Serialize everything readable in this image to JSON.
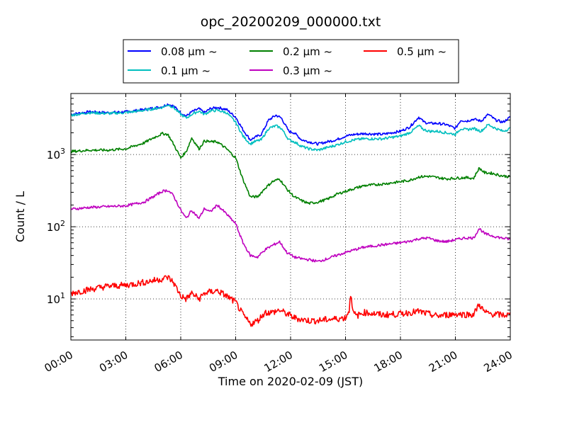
{
  "chart_data": {
    "type": "line",
    "title": "opc_20200209_000000.txt",
    "xlabel": "Time on 2020-02-09 (JST)",
    "ylabel": "Count / L",
    "y_scale": "log",
    "xlim": [
      0,
      24
    ],
    "ylim": [
      2.7,
      7000
    ],
    "grid": true,
    "legend_position": "top-center",
    "x_ticks": [
      {
        "value": 0,
        "label": "00:00"
      },
      {
        "value": 3,
        "label": "03:00"
      },
      {
        "value": 6,
        "label": "06:00"
      },
      {
        "value": 9,
        "label": "09:00"
      },
      {
        "value": 12,
        "label": "12:00"
      },
      {
        "value": 15,
        "label": "15:00"
      },
      {
        "value": 18,
        "label": "18:00"
      },
      {
        "value": 21,
        "label": "21:00"
      },
      {
        "value": 24,
        "label": "24:00"
      }
    ],
    "y_ticks": [
      {
        "value": 10,
        "base": "10",
        "exp": "1"
      },
      {
        "value": 100,
        "base": "10",
        "exp": "2"
      },
      {
        "value": 1000,
        "base": "10",
        "exp": "3"
      }
    ],
    "series": [
      {
        "name": "0.08 μm ~",
        "color": "#0000ff",
        "x": [
          0,
          1,
          2,
          3,
          4,
          5,
          5.3,
          5.6,
          6.0,
          6.3,
          6.6,
          7.0,
          7.3,
          7.6,
          8.0,
          8.5,
          9.0,
          9.4,
          9.8,
          10.0,
          10.4,
          10.8,
          11.2,
          11.5,
          11.9,
          12.2,
          12.6,
          13.0,
          13.5,
          14.0,
          14.5,
          15.0,
          15.5,
          16.0,
          17.0,
          18.0,
          18.5,
          19.0,
          19.3,
          19.6,
          20.0,
          20.5,
          21.0,
          21.3,
          21.6,
          22.0,
          22.4,
          22.8,
          23.2,
          23.6,
          24.0
        ],
        "y": [
          3600,
          3900,
          3800,
          3900,
          4200,
          4600,
          5000,
          4700,
          3800,
          3400,
          3900,
          4300,
          3800,
          4300,
          4500,
          4200,
          3300,
          2200,
          1600,
          1700,
          1900,
          3000,
          3500,
          3200,
          2100,
          2000,
          1600,
          1500,
          1400,
          1500,
          1600,
          1800,
          1900,
          1950,
          1900,
          2100,
          2400,
          3300,
          2800,
          2700,
          2700,
          2600,
          2300,
          3000,
          2900,
          3100,
          2900,
          3600,
          3000,
          2800,
          3300
        ]
      },
      {
        "name": "0.1 μm ~",
        "color": "#00bfbf",
        "x": [
          0,
          1,
          2,
          3,
          4,
          5,
          5.3,
          5.6,
          6.0,
          6.3,
          6.6,
          7.0,
          7.3,
          7.6,
          8.0,
          8.5,
          9.0,
          9.4,
          9.8,
          10.0,
          10.4,
          10.8,
          11.2,
          11.5,
          11.9,
          12.2,
          12.6,
          13.0,
          13.5,
          14.0,
          14.5,
          15.0,
          15.5,
          16.0,
          17.0,
          18.0,
          18.5,
          19.0,
          19.3,
          19.6,
          20.0,
          20.5,
          21.0,
          21.3,
          21.6,
          22.0,
          22.4,
          22.8,
          23.2,
          23.6,
          24.0
        ],
        "y": [
          3500,
          3800,
          3700,
          3800,
          4100,
          4500,
          4900,
          4500,
          3600,
          3200,
          3600,
          4000,
          3600,
          4000,
          4100,
          3800,
          2800,
          1800,
          1400,
          1500,
          1600,
          2300,
          2500,
          2300,
          1600,
          1500,
          1300,
          1200,
          1150,
          1250,
          1350,
          1500,
          1600,
          1650,
          1650,
          1800,
          2000,
          2500,
          2200,
          2100,
          2100,
          2000,
          1900,
          2300,
          2200,
          2300,
          2100,
          2600,
          2300,
          2100,
          2300
        ]
      },
      {
        "name": "0.2 μm ~",
        "color": "#008000",
        "x": [
          0,
          1,
          2,
          3,
          4,
          4.5,
          5.0,
          5.3,
          5.6,
          6.0,
          6.3,
          6.6,
          7.0,
          7.3,
          7.6,
          8.0,
          8.5,
          9.0,
          9.4,
          9.8,
          10.2,
          10.6,
          11.0,
          11.4,
          11.8,
          12.2,
          12.6,
          13.0,
          13.5,
          14.0,
          14.5,
          15.0,
          15.5,
          16.0,
          17.0,
          18.0,
          18.5,
          19.0,
          19.5,
          20.0,
          20.5,
          21.0,
          21.5,
          22.0,
          22.3,
          22.6,
          23.0,
          23.5,
          24.0
        ],
        "y": [
          1100,
          1150,
          1150,
          1200,
          1450,
          1700,
          1950,
          1900,
          1400,
          900,
          1100,
          1700,
          1200,
          1550,
          1500,
          1500,
          1200,
          900,
          450,
          260,
          260,
          340,
          420,
          460,
          330,
          260,
          230,
          210,
          220,
          240,
          280,
          310,
          340,
          370,
          390,
          420,
          440,
          490,
          500,
          480,
          460,
          470,
          480,
          470,
          650,
          560,
          550,
          510,
          490
        ]
      },
      {
        "name": "0.3 μm ~",
        "color": "#bf00bf",
        "x": [
          0,
          1,
          2,
          3,
          4,
          4.5,
          5.0,
          5.3,
          5.6,
          6.0,
          6.3,
          6.6,
          7.0,
          7.3,
          7.6,
          8.0,
          8.5,
          9.0,
          9.4,
          9.8,
          10.2,
          10.6,
          11.0,
          11.4,
          11.8,
          12.2,
          12.6,
          13.0,
          13.5,
          14.0,
          14.5,
          15.0,
          15.5,
          16.0,
          17.0,
          18.0,
          18.5,
          19.0,
          19.5,
          20.0,
          20.5,
          21.0,
          21.5,
          22.0,
          22.3,
          22.6,
          23.0,
          23.5,
          24.0
        ],
        "y": [
          175,
          185,
          190,
          195,
          220,
          260,
          310,
          320,
          270,
          170,
          130,
          170,
          130,
          180,
          160,
          200,
          150,
          110,
          60,
          40,
          38,
          48,
          55,
          62,
          44,
          38,
          36,
          35,
          33,
          36,
          40,
          44,
          48,
          52,
          56,
          60,
          63,
          68,
          70,
          64,
          62,
          66,
          70,
          70,
          95,
          80,
          75,
          70,
          67
        ]
      },
      {
        "name": "0.5 μm ~",
        "color": "#ff0000",
        "x": [
          0,
          1,
          2,
          3,
          4,
          4.5,
          5.0,
          5.3,
          5.6,
          6.0,
          6.3,
          6.6,
          7.0,
          7.3,
          7.6,
          8.0,
          8.5,
          9.0,
          9.4,
          9.8,
          10.2,
          10.6,
          11.0,
          11.4,
          11.8,
          12.2,
          12.6,
          13.0,
          13.5,
          14.0,
          14.5,
          15.0,
          15.2,
          15.3,
          15.4,
          15.6,
          16.0,
          16.5,
          17.0,
          18.0,
          18.5,
          19.0,
          19.5,
          20.0,
          20.5,
          21.0,
          21.5,
          22.0,
          22.3,
          22.6,
          23.0,
          23.5,
          24.0
        ],
        "y": [
          12,
          13.5,
          15,
          15.5,
          17,
          18,
          19,
          20,
          17,
          11,
          10,
          12,
          10,
          12,
          12.5,
          13,
          11,
          9,
          6,
          4.5,
          5,
          6.5,
          6.5,
          7,
          6.2,
          5.5,
          5.2,
          5,
          5,
          5.2,
          5.3,
          5.5,
          7,
          13,
          6.5,
          5.8,
          6.5,
          6.3,
          6,
          6.2,
          6.5,
          6.7,
          6.2,
          5.8,
          6,
          6.2,
          6.1,
          6.1,
          8.5,
          6.5,
          6.2,
          6.0,
          6.0
        ]
      }
    ]
  }
}
